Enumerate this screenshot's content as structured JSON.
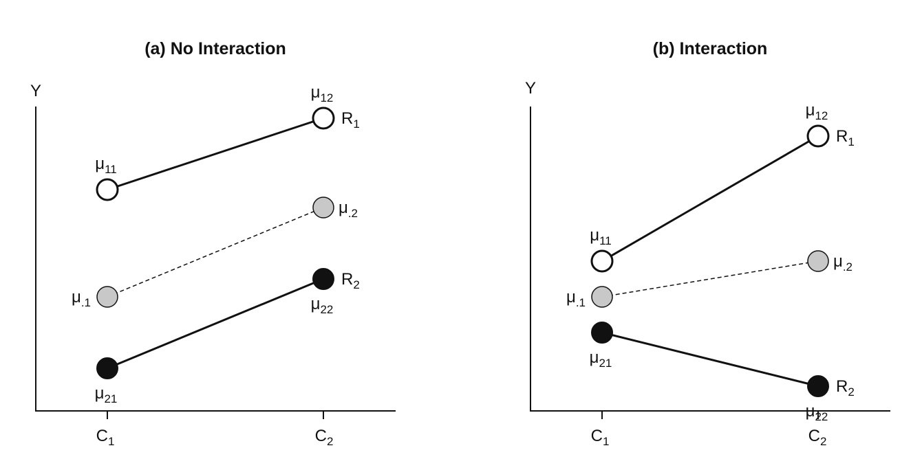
{
  "panels": [
    {
      "title": "(a) No Interaction",
      "y_axis_label": "Y",
      "x_ticks": [
        {
          "base": "C",
          "sub": "1"
        },
        {
          "base": "C",
          "sub": "2"
        }
      ],
      "series": [
        {
          "name": "R",
          "sub": "1",
          "style": "solid",
          "marker": "open",
          "points": [
            {
              "level": 7.0,
              "label": "μ",
              "label_sub": "11"
            },
            {
              "level": 9.0,
              "label": "μ",
              "label_sub": "12"
            }
          ]
        },
        {
          "name": "",
          "sub": "",
          "style": "dashed",
          "marker": "gray",
          "points": [
            {
              "level": 4.0,
              "label": "μ",
              "label_sub": ".1"
            },
            {
              "level": 6.5,
              "label": "μ",
              "label_sub": ".2"
            }
          ]
        },
        {
          "name": "R",
          "sub": "2",
          "style": "solid",
          "marker": "filled",
          "points": [
            {
              "level": 2.0,
              "label": "μ",
              "label_sub": "21"
            },
            {
              "level": 4.5,
              "label": "μ",
              "label_sub": "22"
            }
          ]
        }
      ]
    },
    {
      "title": "(b) Interaction",
      "y_axis_label": "Y",
      "x_ticks": [
        {
          "base": "C",
          "sub": "1"
        },
        {
          "base": "C",
          "sub": "2"
        }
      ],
      "series": [
        {
          "name": "R",
          "sub": "1",
          "style": "solid",
          "marker": "open",
          "points": [
            {
              "level": 5.0,
              "label": "μ",
              "label_sub": "11"
            },
            {
              "level": 8.5,
              "label": "μ",
              "label_sub": "12"
            }
          ]
        },
        {
          "name": "",
          "sub": "",
          "style": "dashed",
          "marker": "gray",
          "points": [
            {
              "level": 4.0,
              "label": "μ",
              "label_sub": ".1"
            },
            {
              "level": 5.0,
              "label": "μ",
              "label_sub": ".2"
            }
          ]
        },
        {
          "name": "R",
          "sub": "2",
          "style": "solid",
          "marker": "filled",
          "points": [
            {
              "level": 3.0,
              "label": "μ",
              "label_sub": "21"
            },
            {
              "level": 1.5,
              "label": "μ",
              "label_sub": "22"
            }
          ]
        }
      ]
    }
  ],
  "colors": {
    "line": "#111111",
    "open_fill": "#ffffff",
    "gray_fill": "#c8c8c8",
    "filled_fill": "#111111"
  }
}
